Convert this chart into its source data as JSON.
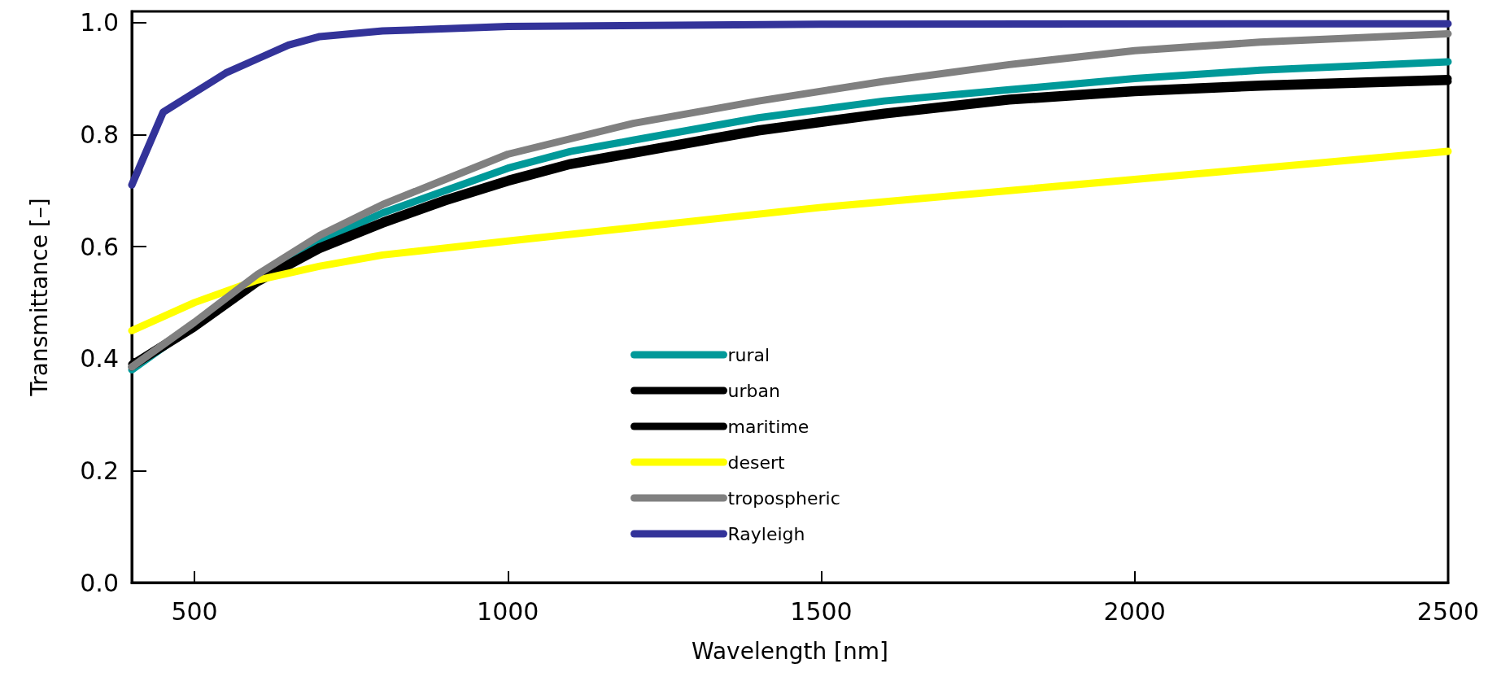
{
  "chart_data": {
    "type": "line",
    "xlabel": "Wavelength [nm]",
    "ylabel": "Transmittance [–]",
    "xlim": [
      400,
      2500
    ],
    "xticks": [
      500,
      1000,
      1500,
      2000,
      2500
    ],
    "ylim": [
      0,
      1.02
    ],
    "yticks": [
      {
        "value": 0,
        "label": "0.0"
      },
      0.2,
      0.4,
      0.6,
      0.8,
      {
        "value": 1,
        "label": "1.0"
      }
    ],
    "grid": false,
    "legend": "bottom",
    "marker": "none",
    "line_style": "solid",
    "series": [
      {
        "name": "rural",
        "color": "#009999",
        "x": [
          400,
          500,
          600,
          700,
          800,
          900,
          1000,
          1100,
          1200,
          1400,
          1600,
          1800,
          2000,
          2200,
          2500
        ],
        "values": [
          0.38,
          0.46,
          0.545,
          0.61,
          0.66,
          0.7,
          0.74,
          0.77,
          0.79,
          0.83,
          0.86,
          0.88,
          0.9,
          0.915,
          0.93
        ]
      },
      {
        "name": "urban",
        "color": "#000000",
        "x": [
          400,
          500,
          600,
          700,
          800,
          900,
          1000,
          1100,
          1200,
          1400,
          1600,
          1800,
          2000,
          2200,
          2500
        ],
        "values": [
          0.39,
          0.46,
          0.54,
          0.6,
          0.645,
          0.685,
          0.72,
          0.75,
          0.77,
          0.81,
          0.84,
          0.865,
          0.88,
          0.89,
          0.9
        ]
      },
      {
        "name": "maritime",
        "color": "#000000",
        "x": [
          400,
          500,
          600,
          700,
          800,
          900,
          1000,
          1100,
          1200,
          1400,
          1600,
          1800,
          2000,
          2200,
          2500
        ],
        "values": [
          0.385,
          0.455,
          0.535,
          0.595,
          0.64,
          0.68,
          0.715,
          0.745,
          0.765,
          0.805,
          0.835,
          0.86,
          0.875,
          0.885,
          0.895
        ]
      },
      {
        "name": "desert",
        "color": "#ffff00",
        "x": [
          400,
          500,
          600,
          700,
          800,
          1000,
          1500,
          2000,
          2500
        ],
        "values": [
          0.45,
          0.5,
          0.54,
          0.565,
          0.585,
          0.61,
          0.67,
          0.72,
          0.77
        ]
      },
      {
        "name": "tropospheric",
        "color": "#808080",
        "x": [
          400,
          500,
          600,
          700,
          800,
          900,
          1000,
          1200,
          1400,
          1600,
          1800,
          2000,
          2200,
          2500
        ],
        "values": [
          0.385,
          0.465,
          0.55,
          0.62,
          0.675,
          0.72,
          0.765,
          0.82,
          0.86,
          0.895,
          0.925,
          0.95,
          0.965,
          0.98
        ]
      },
      {
        "name": "Rayleigh",
        "color": "#333399",
        "x": [
          400,
          450,
          500,
          550,
          600,
          650,
          700,
          800,
          1000,
          1500,
          2500
        ],
        "values": [
          0.71,
          0.84,
          0.875,
          0.91,
          0.935,
          0.96,
          0.975,
          0.985,
          0.993,
          0.997,
          0.998
        ]
      }
    ]
  }
}
